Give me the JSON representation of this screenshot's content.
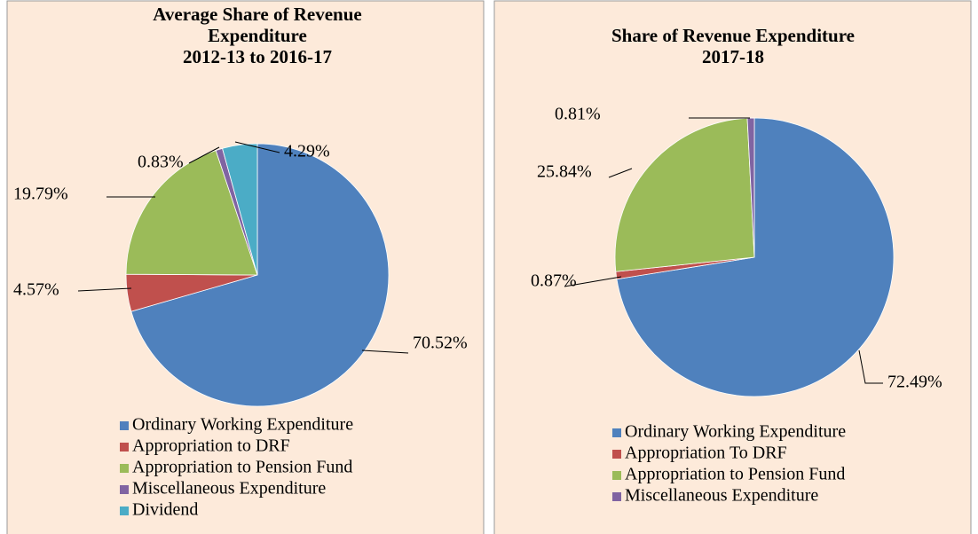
{
  "chart_data": [
    {
      "type": "pie",
      "title": [
        "Average Share of Revenue",
        "Expenditure",
        "2012-13 to 2016-17"
      ],
      "categories": [
        "Ordinary Working Expenditure",
        "Appropriation to DRF",
        "Appropriation to Pension Fund",
        "Miscellaneous Expenditure",
        "Dividend"
      ],
      "values": [
        70.52,
        4.57,
        19.79,
        0.83,
        4.29
      ],
      "value_labels": [
        "70.52%",
        "4.57%",
        "19.79%",
        "0.83%",
        "4.29%"
      ],
      "colors": [
        "#4f81bd",
        "#c0504d",
        "#9bbb59",
        "#8064a2",
        "#4bacc6"
      ],
      "legend": "bottom"
    },
    {
      "type": "pie",
      "title": [
        "Share of Revenue Expenditure",
        "2017-18"
      ],
      "categories": [
        "Ordinary Working Expenditure",
        "Appropriation To DRF",
        "Appropriation to Pension Fund",
        "Miscellaneous Expenditure"
      ],
      "values": [
        72.49,
        0.87,
        25.84,
        0.81
      ],
      "value_labels": [
        "72.49%",
        "0.87%",
        "25.84%",
        "0.81%"
      ],
      "colors": [
        "#4f81bd",
        "#c0504d",
        "#9bbb59",
        "#8064a2"
      ],
      "legend": "bottom"
    }
  ]
}
